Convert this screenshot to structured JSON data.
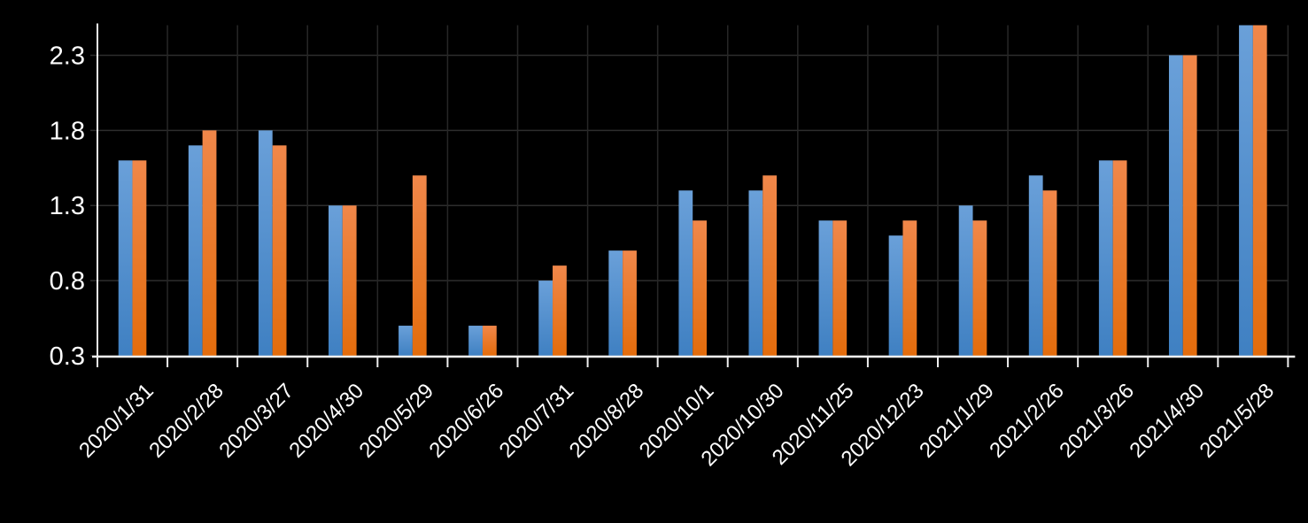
{
  "chart_data": {
    "type": "bar",
    "title": "",
    "subtitle": "",
    "legend": "none",
    "background_color": "#000000",
    "plot": {
      "grid": "on",
      "h_gridline_color": "#2d2d2d",
      "v_gridline_color": "#272727",
      "axis_color": "#efefef",
      "text_color": "#ffffff"
    },
    "categories": [
      "2020/1/31",
      "2020/2/28",
      "2020/3/27",
      "2020/4/30",
      "2020/5/29",
      "2020/6/26",
      "2020/7/31",
      "2020/8/28",
      "2020/10/1",
      "2020/10/30",
      "2020/11/25",
      "2020/12/23",
      "2021/1/29",
      "2021/2/26",
      "2021/3/26",
      "2021/4/30",
      "2021/5/28"
    ],
    "series": [
      {
        "name": "blue",
        "color_top": "#6AA0D9",
        "color_bottom": "#3F80C2",
        "values": [
          1.6,
          1.7,
          1.8,
          1.3,
          0.5,
          0.5,
          0.8,
          1.0,
          1.4,
          1.4,
          1.2,
          1.1,
          1.3,
          1.5,
          1.6,
          2.3,
          2.5
        ]
      },
      {
        "name": "orange",
        "color_top": "#F0874A",
        "color_bottom": "#E36C0C",
        "values": [
          1.6,
          1.8,
          1.7,
          1.3,
          1.5,
          0.5,
          0.9,
          1.0,
          1.2,
          1.5,
          1.2,
          1.2,
          1.2,
          1.4,
          1.6,
          2.3,
          2.5
        ]
      }
    ],
    "y_axis": {
      "min": 0.3,
      "max": 2.5,
      "tick_interval": 0.5,
      "ticks": [
        0.3,
        0.8,
        1.3,
        1.8,
        2.3
      ],
      "tick_labels": [
        "0.3",
        "0.8",
        "1.3",
        "1.8",
        "2.3"
      ]
    },
    "x_axis": {
      "label_rotation_deg": 45
    }
  }
}
